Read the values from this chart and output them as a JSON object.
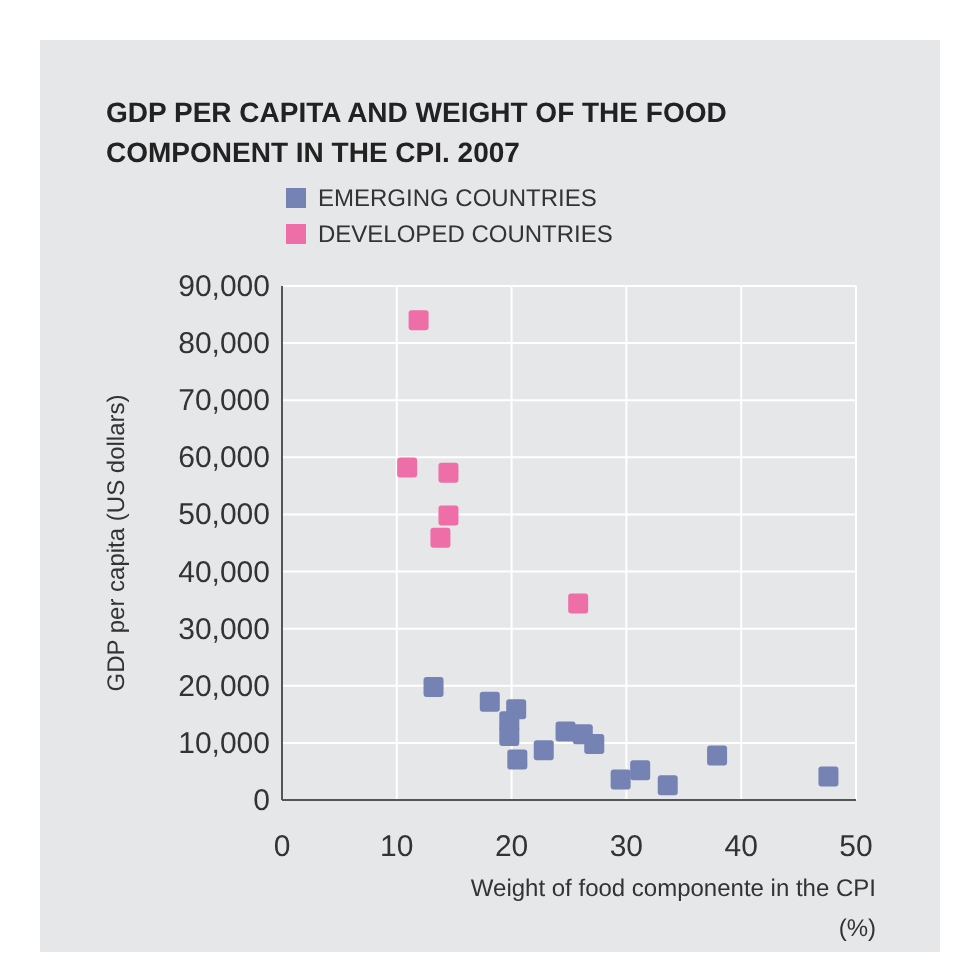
{
  "chart_data": {
    "type": "scatter",
    "title": "GDP PER CAPITA AND WEIGHT OF THE FOOD COMPONENT IN THE CPI. 2007",
    "xlabel": "Weight of food componente in the CPI (%)",
    "ylabel": "GDP per capita (US dollars)",
    "series": [
      {
        "name": "EMERGING COUNTRIES",
        "color": "#7482b4",
        "x": [
          13.2,
          18.1,
          20.4,
          19.8,
          19.8,
          20.5,
          22.8,
          24.7,
          26.2,
          27.2,
          29.5,
          31.2,
          33.6,
          37.9,
          47.6
        ],
        "values": [
          19800,
          17200,
          15900,
          13800,
          11200,
          7100,
          8700,
          12000,
          11500,
          9800,
          3600,
          5200,
          2600,
          7800,
          4100
        ]
      },
      {
        "name": "DEVELOPED COUNTRIES",
        "color": "#ee6ea8",
        "x": [
          11.9,
          10.9,
          14.5,
          14.5,
          13.8,
          25.8
        ],
        "values": [
          84000,
          58200,
          57300,
          49800,
          45900,
          34400
        ]
      }
    ],
    "xlim": [
      0,
      50
    ],
    "xticks": [
      0,
      10,
      20,
      30,
      40,
      50
    ],
    "ylim": [
      0,
      90000
    ],
    "yticks": [
      {
        "value": 0,
        "label": "0"
      },
      {
        "value": 10000,
        "label": "10,000"
      },
      {
        "value": 20000,
        "label": "20,000"
      },
      {
        "value": 30000,
        "label": "30,000"
      },
      {
        "value": 40000,
        "label": "40,000"
      },
      {
        "value": 50000,
        "label": "50,000"
      },
      {
        "value": 60000,
        "label": "60,000"
      },
      {
        "value": 70000,
        "label": "70,000"
      },
      {
        "value": 80000,
        "label": "80,000"
      },
      {
        "value": 90000,
        "label": "90,000"
      }
    ],
    "grid": true,
    "legend": "top left",
    "marker": "square"
  }
}
